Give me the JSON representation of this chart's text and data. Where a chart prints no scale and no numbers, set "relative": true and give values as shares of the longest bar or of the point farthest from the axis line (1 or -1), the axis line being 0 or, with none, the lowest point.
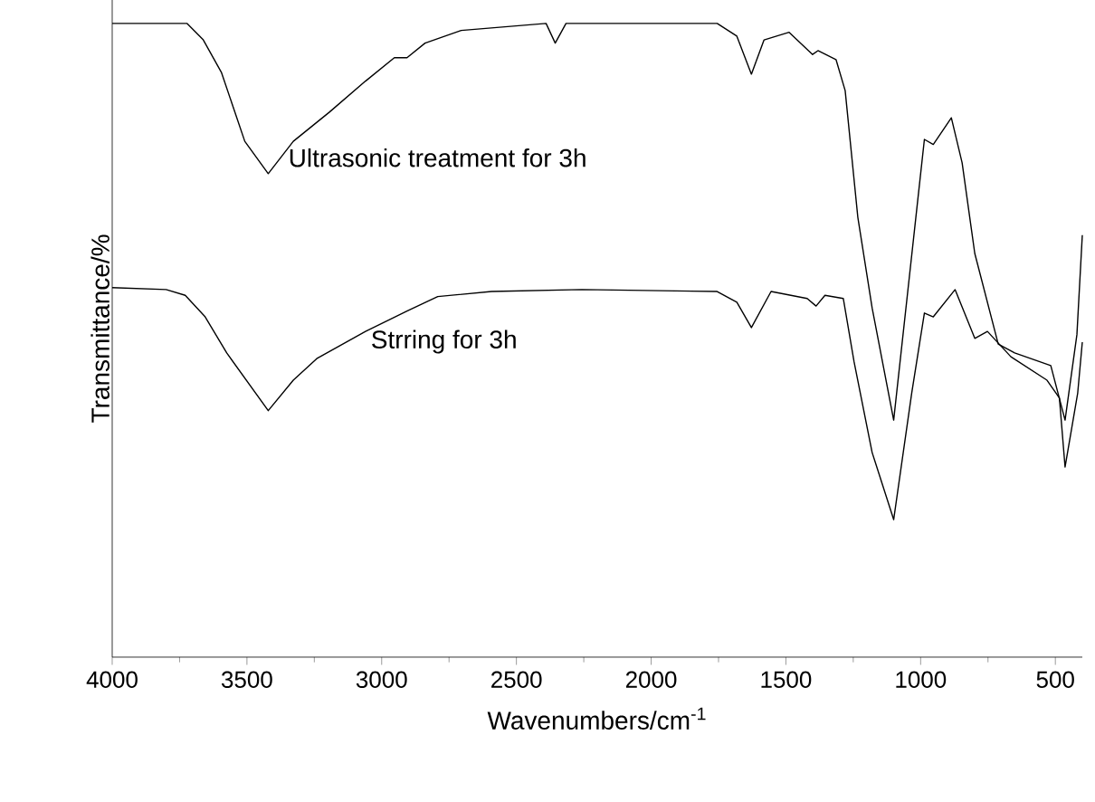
{
  "chart_data": {
    "type": "line",
    "relative": true,
    "xlabel": "Wavenumbers/cm$^{-1}$",
    "ylabel": "Transmittance/%",
    "xlim": [
      4000,
      400
    ],
    "xticks": [
      4000,
      3500,
      3000,
      2500,
      2000,
      1500,
      1000,
      500
    ],
    "legend": false,
    "marker": "none",
    "line_style": "solid",
    "series": [
      {
        "name": "Ultrasonic treatment for 3h",
        "color": "#000000",
        "x": [
          4000,
          3722,
          3662,
          3595,
          3508,
          3421,
          3328,
          3194,
          3060,
          2953,
          2906,
          2839,
          2705,
          2390,
          2356,
          2316,
          1755,
          1682,
          1628,
          1581,
          1488,
          1401,
          1381,
          1314,
          1280,
          1233,
          1180,
          1100,
          986,
          953,
          886,
          846,
          799,
          712,
          651,
          517,
          464,
          420,
          400
        ],
        "values": [
          1.0,
          1.0,
          0.974,
          0.923,
          0.814,
          0.763,
          0.814,
          0.86,
          0.909,
          0.946,
          0.946,
          0.969,
          0.989,
          1.0,
          0.969,
          1.0,
          1.0,
          0.98,
          0.92,
          0.974,
          0.986,
          0.951,
          0.957,
          0.943,
          0.894,
          0.694,
          0.551,
          0.374,
          0.817,
          0.809,
          0.851,
          0.78,
          0.637,
          0.494,
          0.48,
          0.46,
          0.374,
          0.509,
          0.666
        ]
      },
      {
        "name": "Strring for 3h",
        "color": "#000000",
        "x": [
          4000,
          3800,
          3729,
          3655,
          3575,
          3421,
          3328,
          3241,
          3060,
          2906,
          2792,
          2592,
          2257,
          1755,
          1682,
          1628,
          1555,
          1421,
          1388,
          1355,
          1287,
          1247,
          1180,
          1100,
          1033,
          986,
          953,
          872,
          799,
          752,
          665,
          531,
          485,
          464,
          417,
          400
        ],
        "values": [
          0.583,
          0.58,
          0.571,
          0.537,
          0.48,
          0.389,
          0.437,
          0.471,
          0.514,
          0.546,
          0.569,
          0.577,
          0.58,
          0.577,
          0.56,
          0.52,
          0.577,
          0.566,
          0.554,
          0.571,
          0.566,
          0.466,
          0.323,
          0.217,
          0.417,
          0.543,
          0.537,
          0.58,
          0.503,
          0.514,
          0.474,
          0.437,
          0.409,
          0.3,
          0.417,
          0.497
        ]
      }
    ]
  }
}
